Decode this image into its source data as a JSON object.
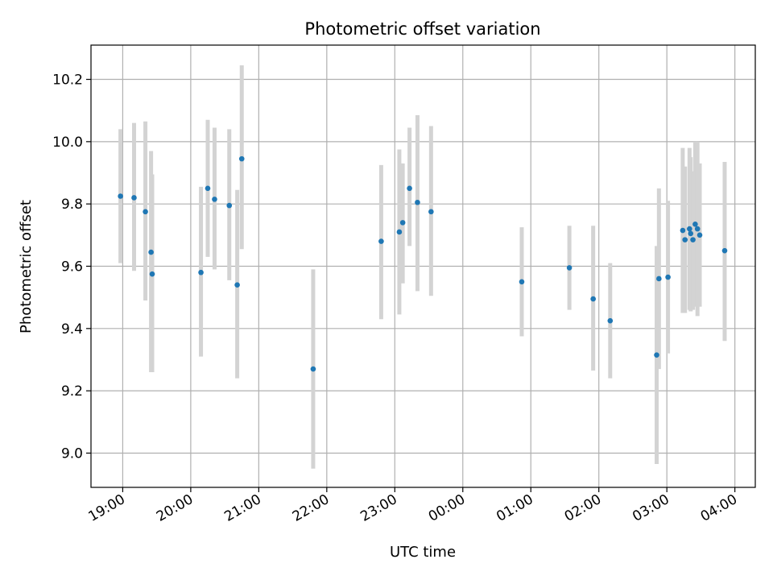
{
  "chart_data": {
    "type": "scatter",
    "title": "Photometric offset variation",
    "xlabel": "UTC time",
    "ylabel": "Photometric offset",
    "xlim": [
      "18:32",
      "04:18"
    ],
    "ylim": [
      8.89,
      10.31
    ],
    "xticks": [
      "19:00",
      "20:00",
      "21:00",
      "22:00",
      "23:00",
      "00:00",
      "01:00",
      "02:00",
      "03:00",
      "04:00"
    ],
    "yticks": [
      "9.0",
      "9.2",
      "9.4",
      "9.6",
      "9.8",
      "10.0",
      "10.2"
    ],
    "grid": true,
    "xtick_rotation_deg": 30,
    "colors": {
      "point": "#1f77b4",
      "errorbar": "#d3d3d3",
      "grid": "#b0b0b0"
    },
    "series": [
      {
        "points": [
          {
            "x": "18:58",
            "y": 9.825,
            "lo": 9.61,
            "hi": 10.04
          },
          {
            "x": "19:10",
            "y": 9.82,
            "lo": 9.585,
            "hi": 10.06
          },
          {
            "x": "19:20",
            "y": 9.775,
            "lo": 9.49,
            "hi": 10.065
          },
          {
            "x": "19:25",
            "y": 9.645,
            "lo": 9.26,
            "hi": 9.97
          },
          {
            "x": "19:26",
            "y": 9.575,
            "lo": 9.26,
            "hi": 9.895
          },
          {
            "x": "20:09",
            "y": 9.58,
            "lo": 9.31,
            "hi": 9.855
          },
          {
            "x": "20:15",
            "y": 9.85,
            "lo": 9.63,
            "hi": 10.07
          },
          {
            "x": "20:21",
            "y": 9.815,
            "lo": 9.59,
            "hi": 10.045
          },
          {
            "x": "20:34",
            "y": 9.795,
            "lo": 9.555,
            "hi": 10.04
          },
          {
            "x": "20:41",
            "y": 9.54,
            "lo": 9.24,
            "hi": 9.845
          },
          {
            "x": "20:45",
            "y": 9.945,
            "lo": 9.655,
            "hi": 10.245
          },
          {
            "x": "21:48",
            "y": 9.27,
            "lo": 8.95,
            "hi": 9.59
          },
          {
            "x": "22:48",
            "y": 9.68,
            "lo": 9.43,
            "hi": 9.925
          },
          {
            "x": "23:04",
            "y": 9.71,
            "lo": 9.445,
            "hi": 9.975
          },
          {
            "x": "23:07",
            "y": 9.74,
            "lo": 9.545,
            "hi": 9.93
          },
          {
            "x": "23:13",
            "y": 9.85,
            "lo": 9.665,
            "hi": 10.045
          },
          {
            "x": "23:20",
            "y": 9.805,
            "lo": 9.52,
            "hi": 10.085
          },
          {
            "x": "23:32",
            "y": 9.775,
            "lo": 9.505,
            "hi": 10.05
          },
          {
            "x": "00:52",
            "y": 9.55,
            "lo": 9.375,
            "hi": 9.725
          },
          {
            "x": "01:34",
            "y": 9.595,
            "lo": 9.46,
            "hi": 9.73
          },
          {
            "x": "01:55",
            "y": 9.495,
            "lo": 9.265,
            "hi": 9.73
          },
          {
            "x": "02:10",
            "y": 9.425,
            "lo": 9.24,
            "hi": 9.61
          },
          {
            "x": "02:51",
            "y": 9.315,
            "lo": 8.965,
            "hi": 9.665
          },
          {
            "x": "02:53",
            "y": 9.56,
            "lo": 9.27,
            "hi": 9.85
          },
          {
            "x": "03:01",
            "y": 9.565,
            "lo": 9.32,
            "hi": 9.81
          },
          {
            "x": "03:14",
            "y": 9.715,
            "lo": 9.45,
            "hi": 9.98
          },
          {
            "x": "03:16",
            "y": 9.685,
            "lo": 9.45,
            "hi": 9.92
          },
          {
            "x": "03:20",
            "y": 9.72,
            "lo": 9.46,
            "hi": 9.98
          },
          {
            "x": "03:21",
            "y": 9.705,
            "lo": 9.455,
            "hi": 9.95
          },
          {
            "x": "03:23",
            "y": 9.685,
            "lo": 9.46,
            "hi": 9.905
          },
          {
            "x": "03:25",
            "y": 9.735,
            "lo": 9.47,
            "hi": 10.0
          },
          {
            "x": "03:27",
            "y": 9.72,
            "lo": 9.44,
            "hi": 10.0
          },
          {
            "x": "03:29",
            "y": 9.7,
            "lo": 9.47,
            "hi": 9.93
          },
          {
            "x": "03:51",
            "y": 9.65,
            "lo": 9.36,
            "hi": 9.935
          }
        ]
      }
    ]
  }
}
